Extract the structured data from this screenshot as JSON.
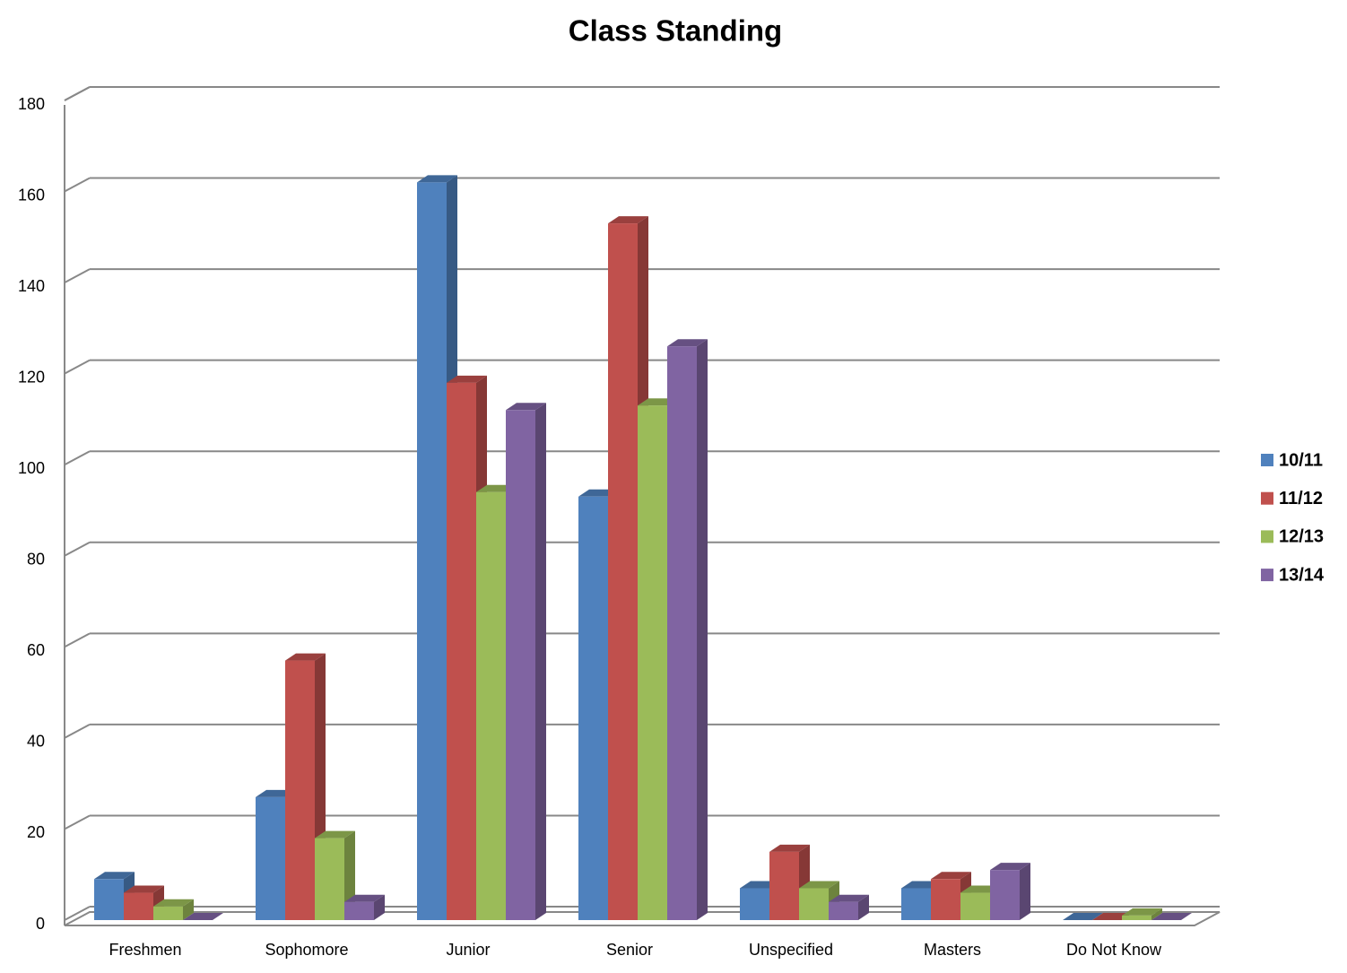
{
  "chart_data": {
    "type": "bar3d",
    "title": "Class Standing",
    "categories": [
      "Freshmen",
      "Sophomore",
      "Junior",
      "Senior",
      "Unspecified",
      "Masters",
      "Do Not Know"
    ],
    "series": [
      {
        "name": "10/11",
        "color": "#4f81bd",
        "values": [
          9,
          27,
          162,
          93,
          7,
          7,
          0
        ]
      },
      {
        "name": "11/12",
        "color": "#c0504d",
        "values": [
          6,
          57,
          118,
          153,
          15,
          9,
          0
        ]
      },
      {
        "name": "12/13",
        "color": "#9bbb59",
        "values": [
          3,
          18,
          94,
          113,
          7,
          6,
          1
        ]
      },
      {
        "name": "13/14",
        "color": "#8064a2",
        "values": [
          0,
          4,
          112,
          126,
          4,
          11,
          0
        ]
      }
    ],
    "ylim": [
      0,
      180
    ],
    "yticks": [
      0,
      20,
      40,
      60,
      80,
      100,
      120,
      140,
      160,
      180
    ],
    "grid": true,
    "legend": "right"
  }
}
